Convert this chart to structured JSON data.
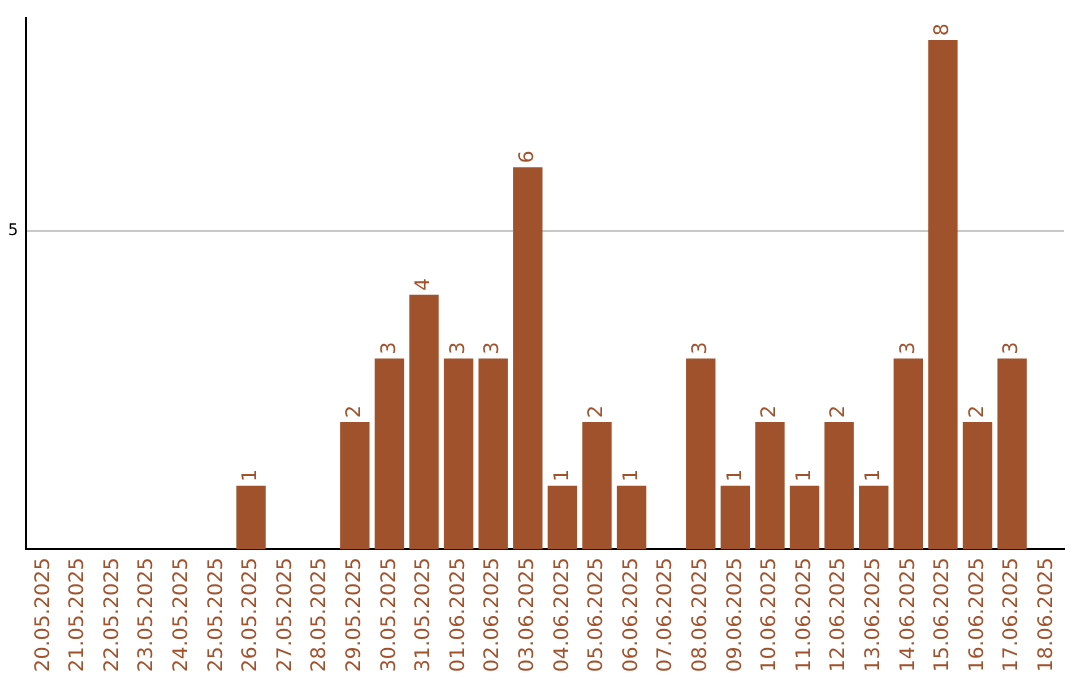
{
  "chart_data": {
    "type": "bar",
    "categories": [
      "20.05.2025",
      "21.05.2025",
      "22.05.2025",
      "23.05.2025",
      "24.05.2025",
      "25.05.2025",
      "26.05.2025",
      "27.05.2025",
      "28.05.2025",
      "29.05.2025",
      "30.05.2025",
      "31.05.2025",
      "01.06.2025",
      "02.06.2025",
      "03.06.2025",
      "04.06.2025",
      "05.06.2025",
      "06.06.2025",
      "07.06.2025",
      "08.06.2025",
      "09.06.2025",
      "10.06.2025",
      "11.06.2025",
      "12.06.2025",
      "13.06.2025",
      "14.06.2025",
      "15.06.2025",
      "16.06.2025",
      "17.06.2025",
      "18.06.2025"
    ],
    "values": [
      null,
      null,
      null,
      null,
      null,
      null,
      1,
      null,
      null,
      2,
      3,
      4,
      3,
      3,
      6,
      1,
      2,
      1,
      null,
      3,
      1,
      2,
      1,
      2,
      1,
      3,
      8,
      2,
      3,
      null
    ],
    "color": "#a0522d",
    "ylim": [
      0,
      8.35
    ],
    "yticks": [
      5
    ],
    "grid": "y",
    "data_labels": true,
    "legend": false
  }
}
